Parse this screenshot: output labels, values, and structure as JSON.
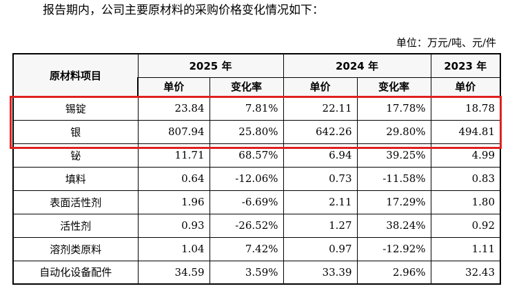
{
  "intro_text": "报告期内，公司主要原材料的采购价格变化情况如下：",
  "unit_text": "单位：万元/吨、元/件",
  "table": {
    "item_header": "原材料项目",
    "years": [
      "2025 年",
      "2024 年",
      "2023 年"
    ],
    "unit_price_label": "单价",
    "change_rate_label": "变化率",
    "rows": [
      {
        "name": "锡锭",
        "p2025": "23.84",
        "c2025": "7.81%",
        "p2024": "22.11",
        "c2024": "17.78%",
        "p2023": "18.78"
      },
      {
        "name": "银",
        "p2025": "807.94",
        "c2025": "25.80%",
        "p2024": "642.26",
        "c2024": "29.80%",
        "p2023": "494.81"
      },
      {
        "name": "铋",
        "p2025": "11.71",
        "c2025": "68.57%",
        "p2024": "6.94",
        "c2024": "39.25%",
        "p2023": "4.99"
      },
      {
        "name": "填料",
        "p2025": "0.64",
        "c2025": "-12.06%",
        "p2024": "0.73",
        "c2024": "-11.58%",
        "p2023": "0.83"
      },
      {
        "name": "表面活性剂",
        "p2025": "1.96",
        "c2025": "-6.69%",
        "p2024": "2.11",
        "c2024": "17.29%",
        "p2023": "1.80"
      },
      {
        "name": "活性剂",
        "p2025": "0.93",
        "c2025": "-26.52%",
        "p2024": "1.27",
        "c2024": "38.24%",
        "p2023": "0.92"
      },
      {
        "name": "溶剂类原料",
        "p2025": "1.04",
        "c2025": "7.42%",
        "p2024": "0.97",
        "c2024": "-12.92%",
        "p2023": "1.11"
      },
      {
        "name": "自动化设备配件",
        "p2025": "34.59",
        "c2025": "3.59%",
        "p2024": "33.39",
        "c2024": "2.96%",
        "p2023": "32.43"
      }
    ]
  },
  "highlight_color": "#e02020"
}
